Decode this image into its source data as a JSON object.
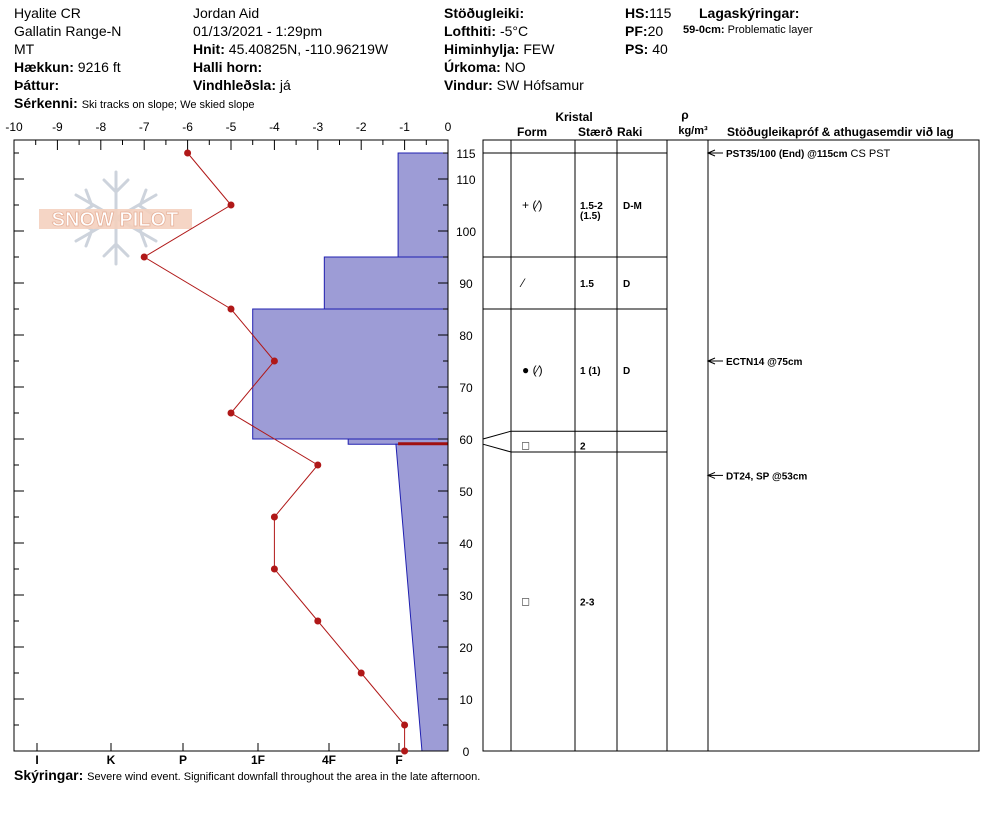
{
  "header": {
    "location": "Hyalite CR",
    "range": "Gallatin Range-N",
    "state": "MT",
    "elevation_label": "Hækkun:",
    "elevation_value": "9216 ft",
    "aspect_label": "Þáttur:",
    "observer": "Jordan Aid",
    "datetime": "01/13/2021 - 1:29pm",
    "coords_label": "Hnit:",
    "coords_value": "45.40825N, -110.96219W",
    "slope_label": "Halli horn:",
    "slope_value": "",
    "wind_loading_label": "Vindhleðsla:",
    "wind_loading_value": "já",
    "stability_label": "Stöðugleiki:",
    "stability_value": "",
    "air_temp_label": "Lofthiti:",
    "air_temp_value": "-5°C",
    "sky_label": "Himinhylja:",
    "sky_value": "FEW",
    "precip_label": "Úrkoma:",
    "precip_value": "NO",
    "wind_label": "Vindur:",
    "wind_value": "SW Hófsamur",
    "hs_label": "HS:",
    "hs_value": "115",
    "pf_label": "PF:",
    "pf_value": "20",
    "ps_label": "PS:",
    "ps_value": "40",
    "layer_notes_label": "Lagaskýringar:",
    "layer_note_range": "59-0cm:",
    "layer_note_text": "Problematic layer",
    "features_label": "Sérkenni:",
    "features_value": "Ski tracks on slope; We skied slope"
  },
  "logo": {
    "text": "SNOW PILOT"
  },
  "table": {
    "crystal_header": "Kristal",
    "form_header": "Form",
    "size_header": "Stærð",
    "moisture_header": "Raki",
    "density_symbol": "ρ",
    "density_unit": "kg/m³",
    "tests_header": "Stöðugleikapróf & athugasemdir við lag",
    "layers": [
      {
        "top": 115,
        "bottom": 95,
        "form": "+ (⁄)",
        "size": "1.5-2",
        "size2": "(1.5)",
        "moisture": "D-M"
      },
      {
        "top": 95,
        "bottom": 85,
        "form": "⁄",
        "size": "1.5",
        "size2": "",
        "moisture": "D"
      },
      {
        "top": 85,
        "bottom": 61.5,
        "form": "● (⁄)",
        "size": "1 (1)",
        "size2": "",
        "moisture": "D"
      },
      {
        "top": 61.5,
        "bottom": 57.5,
        "form": "□",
        "size": "2",
        "size2": "",
        "moisture": ""
      },
      {
        "top": 57.5,
        "bottom": 0,
        "form": "□",
        "size": "2-3",
        "size2": "",
        "moisture": ""
      }
    ],
    "tests": [
      {
        "depth": 115,
        "bold": "PST35/100 (End) @115cm",
        "normal": "CS PST"
      },
      {
        "depth": 75,
        "bold": "ECTN14 @75cm",
        "normal": ""
      },
      {
        "depth": 53,
        "bold": "DT24, SP @53cm",
        "normal": ""
      }
    ]
  },
  "chart_data": {
    "type": "line",
    "temperature_axis": {
      "ticks": [
        -10,
        -9,
        -8,
        -7,
        -6,
        -5,
        -4,
        -3,
        -2,
        -1,
        0
      ],
      "range": [
        -10,
        0
      ]
    },
    "depth_axis": {
      "ticks": [
        0,
        10,
        20,
        30,
        40,
        50,
        60,
        70,
        80,
        90,
        100,
        110,
        115
      ],
      "range": [
        0,
        117.5
      ]
    },
    "hardness_ticks": [
      "I",
      "K",
      "P",
      "1F",
      "4F",
      "F"
    ],
    "temperature_profile": {
      "depths": [
        115,
        105,
        95,
        85,
        75,
        65,
        55,
        45,
        35,
        25,
        15,
        5,
        0
      ],
      "temps": [
        -6,
        -5,
        -7,
        -5,
        -4,
        -5,
        -3,
        -4,
        -4,
        -3,
        -2,
        -1,
        -1
      ]
    },
    "hardness_profile": [
      {
        "top": 115,
        "bottom": 95,
        "hardness": -1.15
      },
      {
        "top": 95,
        "bottom": 85,
        "hardness": -2.85
      },
      {
        "top": 85,
        "bottom": 60,
        "hardness": -4.5
      },
      {
        "top": 60,
        "bottom": 59,
        "hardness": -2.3
      },
      {
        "top": 59,
        "bottom": 0,
        "hardness_top": -1.2,
        "hardness_bottom": -0.6
      }
    ],
    "problem_layer_depth": 59
  },
  "footer": {
    "notes_label": "Skýringar:",
    "notes_value": "Severe wind event. Significant downfall throughout the area in the late afternoon."
  }
}
